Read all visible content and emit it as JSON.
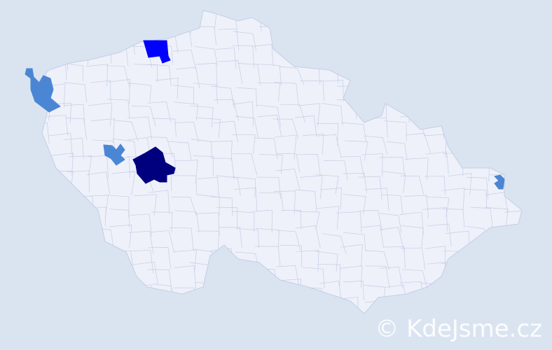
{
  "map": {
    "land_color": "#eef1f9",
    "border_color": "#c5cde6",
    "background_color": "#dae4f1",
    "highlighted_regions": [
      {
        "id": "north",
        "color": "#0000ff"
      },
      {
        "id": "central",
        "color": "#00007f"
      },
      {
        "id": "west",
        "color": "#4b86d4"
      },
      {
        "id": "southwest",
        "color": "#4b86d4"
      },
      {
        "id": "east",
        "color": "#4b86d4"
      }
    ]
  },
  "watermark": {
    "text": "© KdeJsme.cz"
  }
}
